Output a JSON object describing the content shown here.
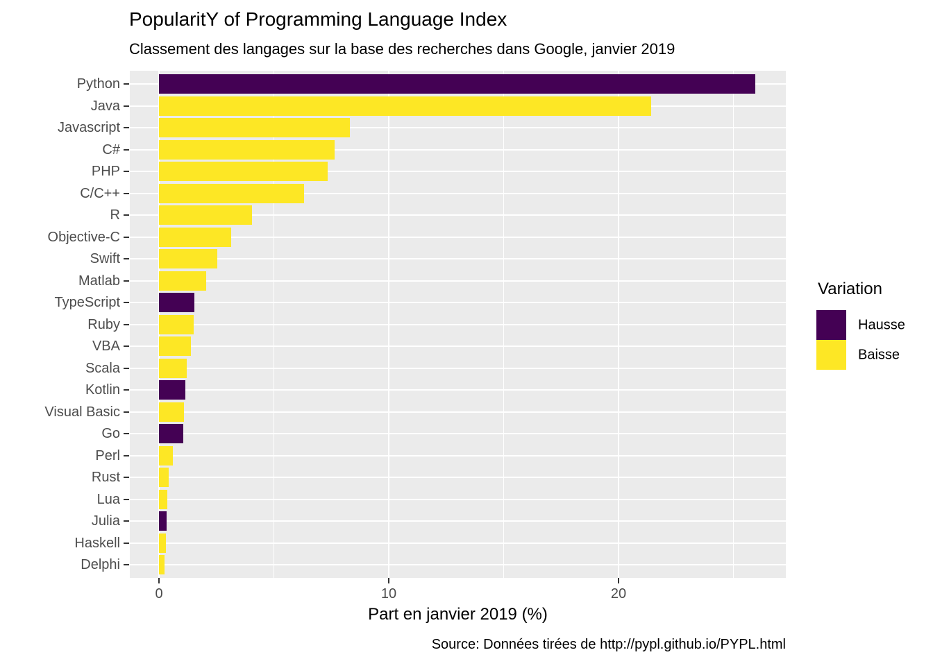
{
  "title": "PopularitY of Programming Language Index",
  "subtitle": "Classement des langages sur la base des recherches dans Google, janvier 2019",
  "caption": "Source: Données tirées de http://pypl.github.io/PYPL.html",
  "legend": {
    "title": "Variation",
    "items": [
      {
        "label": "Hausse",
        "color": "#440154"
      },
      {
        "label": "Baisse",
        "color": "#FDE725"
      }
    ]
  },
  "chart_data": {
    "type": "bar",
    "orientation": "horizontal",
    "title": "PopularitY of Programming Language Index",
    "subtitle": "Classement des langages sur la base des recherches dans Google, janvier 2019",
    "xlabel": "Part en janvier 2019 (%)",
    "ylabel": "",
    "xlim": [
      -1.37,
      27.32
    ],
    "x_major_ticks": [
      0,
      10,
      20
    ],
    "x_minor_gridlines": [
      5,
      15,
      25
    ],
    "grid": true,
    "legend_position": "right",
    "legend_title": "Variation",
    "panel_bg": "#EBEBEB",
    "grid_color": "#FFFFFF",
    "color_map": {
      "Hausse": "#440154",
      "Baisse": "#FDE725"
    },
    "categories": [
      "Python",
      "Java",
      "Javascript",
      "C#",
      "PHP",
      "C/C++",
      "R",
      "Objective-C",
      "Swift",
      "Matlab",
      "TypeScript",
      "Ruby",
      "VBA",
      "Scala",
      "Kotlin",
      "Visual Basic",
      "Go",
      "Perl",
      "Rust",
      "Lua",
      "Julia",
      "Haskell",
      "Delphi"
    ],
    "values": [
      25.95,
      21.42,
      8.3,
      7.65,
      7.35,
      6.3,
      4.05,
      3.15,
      2.55,
      2.05,
      1.55,
      1.5,
      1.4,
      1.2,
      1.15,
      1.1,
      1.05,
      0.6,
      0.42,
      0.37,
      0.32,
      0.3,
      0.25
    ],
    "variation": [
      "Hausse",
      "Baisse",
      "Baisse",
      "Baisse",
      "Baisse",
      "Baisse",
      "Baisse",
      "Baisse",
      "Baisse",
      "Baisse",
      "Hausse",
      "Baisse",
      "Baisse",
      "Baisse",
      "Hausse",
      "Baisse",
      "Hausse",
      "Baisse",
      "Baisse",
      "Baisse",
      "Hausse",
      "Baisse",
      "Baisse"
    ]
  }
}
